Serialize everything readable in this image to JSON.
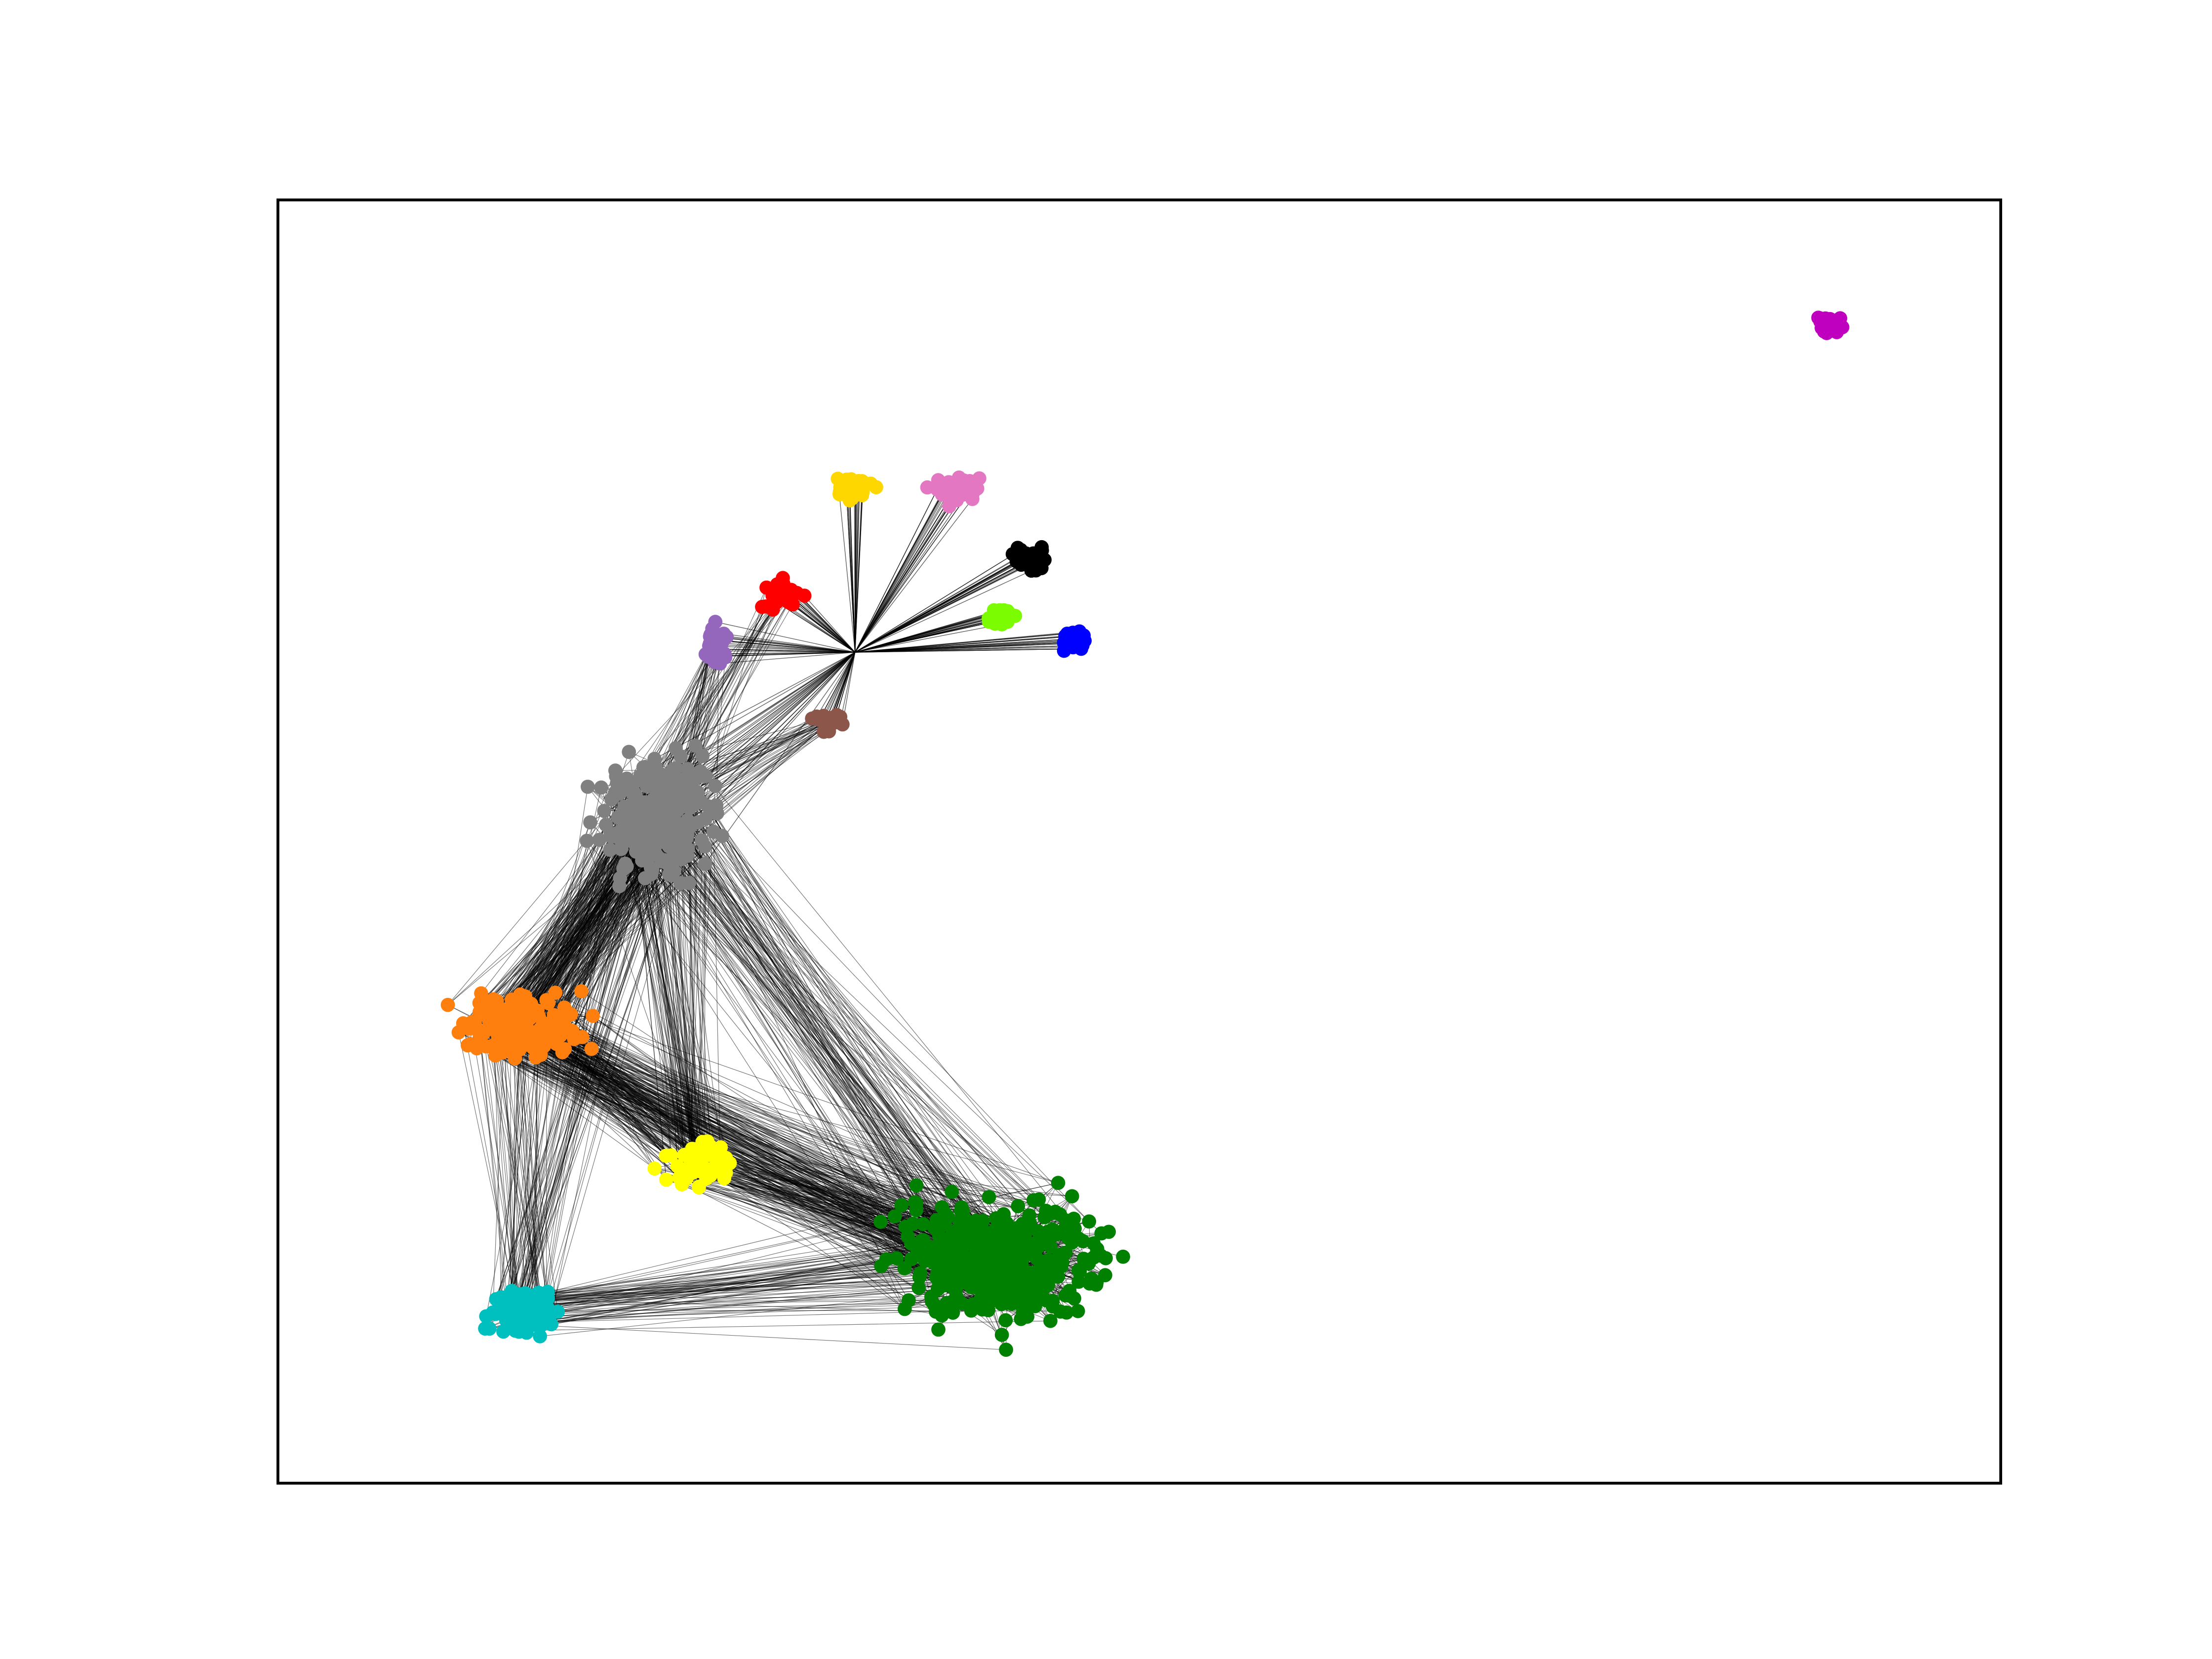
{
  "graph": {
    "communities": [
      {
        "color": "#808080"
      },
      {
        "color": "#ff7f0e"
      },
      {
        "color": "#008000"
      },
      {
        "color": "#00bfbf"
      },
      {
        "color": "#ffff00"
      },
      {
        "color": "#ffd700"
      },
      {
        "color": "#e377c2"
      },
      {
        "color": "#000000"
      },
      {
        "color": "#7cfc00"
      },
      {
        "color": "#0000ff"
      },
      {
        "color": "#ff0000"
      },
      {
        "color": "#9467bd"
      },
      {
        "color": "#8c564b"
      },
      {
        "color": "#bf00bf"
      }
    ]
  }
}
